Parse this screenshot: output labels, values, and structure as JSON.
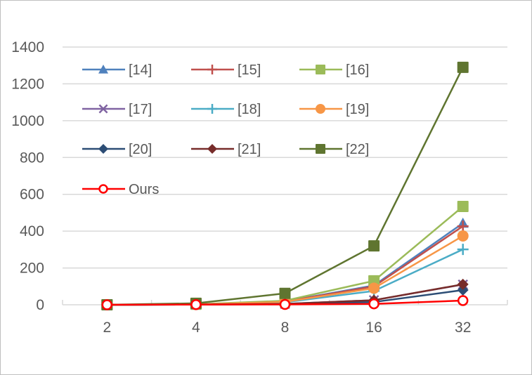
{
  "chart_data": {
    "type": "line",
    "title": "",
    "xlabel": "",
    "ylabel": "",
    "categories": [
      "2",
      "4",
      "8",
      "16",
      "32"
    ],
    "ylim": [
      0,
      1400
    ],
    "yticks": [
      0,
      200,
      400,
      600,
      800,
      1000,
      1200,
      1400
    ],
    "grid": true,
    "legend_position": "inside-top-left",
    "series": [
      {
        "name": "[14]",
        "color": "#4f81bd",
        "marker": "triangle",
        "values": [
          0,
          2,
          18,
          105,
          443
        ]
      },
      {
        "name": "[15]",
        "color": "#c0504d",
        "marker": "plus",
        "values": [
          0,
          2,
          17,
          100,
          427
        ]
      },
      {
        "name": "[16]",
        "color": "#9bbb59",
        "marker": "square",
        "values": [
          0,
          3,
          22,
          130,
          534
        ]
      },
      {
        "name": "[17]",
        "color": "#8064a2",
        "marker": "x",
        "values": [
          0,
          1,
          5,
          25,
          110
        ]
      },
      {
        "name": "[18]",
        "color": "#4bacc6",
        "marker": "plus",
        "values": [
          0,
          2,
          14,
          75,
          301
        ]
      },
      {
        "name": "[19]",
        "color": "#f79646",
        "marker": "circle",
        "values": [
          0,
          2,
          16,
          90,
          374
        ]
      },
      {
        "name": "[20]",
        "color": "#2c4d75",
        "marker": "diamond",
        "values": [
          0,
          1,
          3,
          15,
          80
        ]
      },
      {
        "name": "[21]",
        "color": "#772c2a",
        "marker": "diamond",
        "values": [
          0,
          1,
          5,
          25,
          111
        ]
      },
      {
        "name": "[22]",
        "color": "#5f7530",
        "marker": "square",
        "values": [
          0,
          8,
          62,
          320,
          1290
        ]
      },
      {
        "name": "Ours",
        "color": "#ff0000",
        "marker": "circle-open",
        "values": [
          0,
          1,
          2,
          5,
          23
        ]
      }
    ]
  }
}
